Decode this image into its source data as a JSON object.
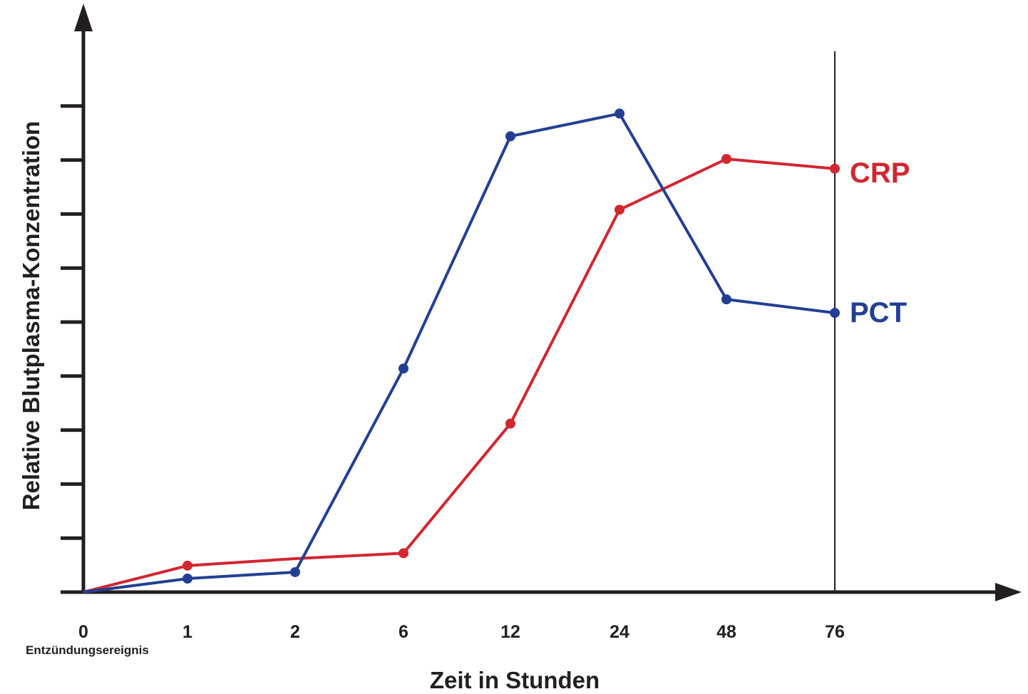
{
  "chart_data": {
    "type": "line",
    "title": "",
    "xlabel": "Zeit in Stunden",
    "ylabel": "Relative Blutplasma-Konzentration",
    "categories": [
      "0",
      "1",
      "2",
      "6",
      "12",
      "24",
      "48",
      "76"
    ],
    "origin_sublabel": "Entzündungsereignis",
    "ylim": [
      0,
      10
    ],
    "ytick_count": 9,
    "grid": false,
    "reference_line_at": "76",
    "series": [
      {
        "name": "CRP",
        "color": "#d22630",
        "points": [
          {
            "x": "0",
            "y": 0.0,
            "marker": false
          },
          {
            "x": "1",
            "y": 0.49,
            "marker": true
          },
          {
            "x": "2",
            "y": 0.62,
            "marker": false
          },
          {
            "x": "6",
            "y": 0.72,
            "marker": true
          },
          {
            "x": "12",
            "y": 3.12,
            "marker": true
          },
          {
            "x": "24",
            "y": 7.08,
            "marker": true
          },
          {
            "x": "48",
            "y": 8.02,
            "marker": true
          },
          {
            "x": "76",
            "y": 7.84,
            "marker": true
          }
        ]
      },
      {
        "name": "PCT",
        "color": "#233f93",
        "points": [
          {
            "x": "0",
            "y": 0.0,
            "marker": false
          },
          {
            "x": "1",
            "y": 0.25,
            "marker": true
          },
          {
            "x": "2",
            "y": 0.37,
            "marker": true
          },
          {
            "x": "6",
            "y": 4.14,
            "marker": true
          },
          {
            "x": "12",
            "y": 8.44,
            "marker": true
          },
          {
            "x": "24",
            "y": 8.86,
            "marker": true
          },
          {
            "x": "48",
            "y": 5.42,
            "marker": true
          },
          {
            "x": "76",
            "y": 5.17,
            "marker": true
          }
        ]
      }
    ]
  },
  "colors": {
    "axis": "#231f20"
  }
}
